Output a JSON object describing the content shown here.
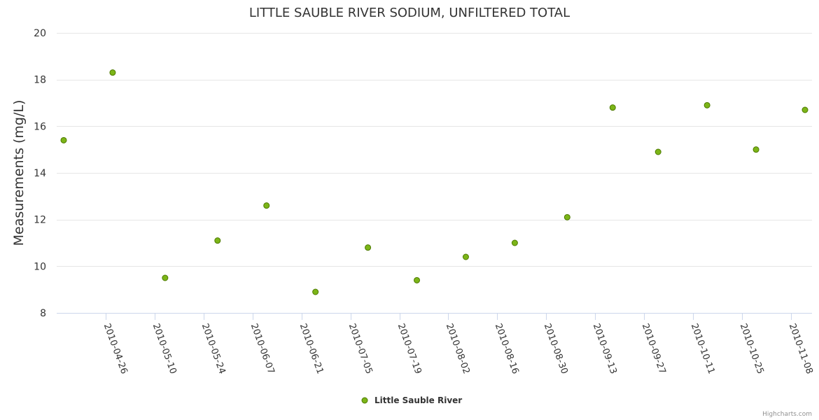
{
  "chart_data": {
    "type": "scatter",
    "title": "LITTLE SAUBLE RIVER SODIUM, UNFILTERED TOTAL",
    "ylabel": "Measurements (mg/L)",
    "xlabel": "",
    "ylim": [
      8,
      20
    ],
    "yticks": [
      8,
      10,
      12,
      14,
      16,
      18,
      20
    ],
    "xlim": [
      "2010-04-12",
      "2010-11-14"
    ],
    "xticks": [
      "2010-04-26",
      "2010-05-10",
      "2010-05-24",
      "2010-06-07",
      "2010-06-21",
      "2010-07-05",
      "2010-07-19",
      "2010-08-02",
      "2010-08-16",
      "2010-08-30",
      "2010-09-13",
      "2010-09-27",
      "2010-10-11",
      "2010-10-25",
      "2010-11-08"
    ],
    "grid": true,
    "legend_position": "bottom-center",
    "series": [
      {
        "name": "Little Sauble River",
        "color": "#7cb518",
        "points": [
          {
            "x": "2010-04-14",
            "y": 15.4
          },
          {
            "x": "2010-04-28",
            "y": 18.3
          },
          {
            "x": "2010-05-13",
            "y": 9.5
          },
          {
            "x": "2010-05-28",
            "y": 11.1
          },
          {
            "x": "2010-06-11",
            "y": 12.6
          },
          {
            "x": "2010-06-25",
            "y": 8.9
          },
          {
            "x": "2010-07-10",
            "y": 10.8
          },
          {
            "x": "2010-07-24",
            "y": 9.4
          },
          {
            "x": "2010-08-07",
            "y": 10.4
          },
          {
            "x": "2010-08-21",
            "y": 11.0
          },
          {
            "x": "2010-09-05",
            "y": 12.1
          },
          {
            "x": "2010-09-18",
            "y": 16.8
          },
          {
            "x": "2010-10-01",
            "y": 14.9
          },
          {
            "x": "2010-10-15",
            "y": 16.9
          },
          {
            "x": "2010-10-29",
            "y": 15.0
          },
          {
            "x": "2010-11-12",
            "y": 16.7
          }
        ]
      }
    ]
  },
  "credits": "Highcharts.com"
}
